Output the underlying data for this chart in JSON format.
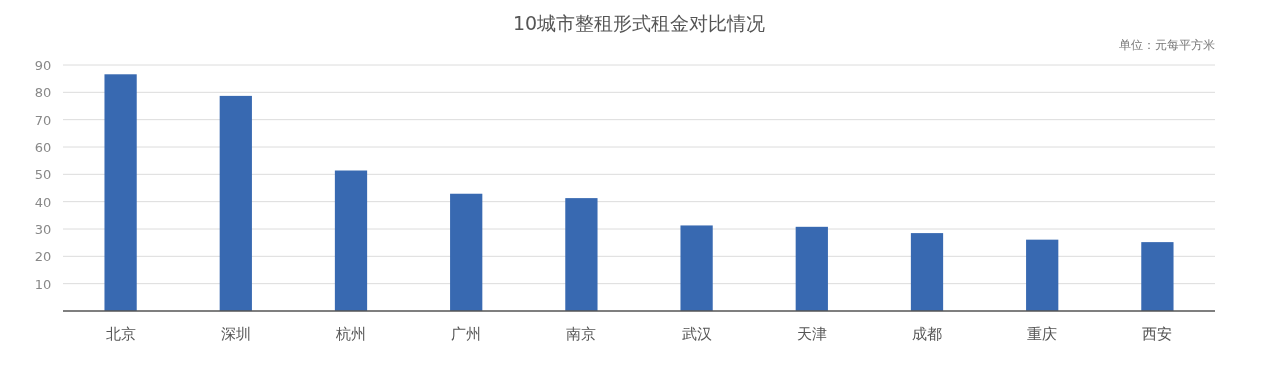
{
  "chart_data": {
    "type": "bar",
    "title": "10城市整租形式租金对比情况",
    "annotations": [
      "单位：元每平方米"
    ],
    "categories": [
      "北京",
      "深圳",
      "杭州",
      "广州",
      "南京",
      "武汉",
      "天津",
      "成都",
      "重庆",
      "西安"
    ],
    "values": [
      86.6,
      78.7,
      51.4,
      42.9,
      41.3,
      31.3,
      30.8,
      28.5,
      26.1,
      25.2
    ],
    "color": "#3869b1",
    "ylim": [
      0,
      90
    ],
    "yticks": [
      10,
      20,
      30,
      40,
      50,
      60,
      70,
      80,
      90
    ],
    "grid": "y"
  }
}
